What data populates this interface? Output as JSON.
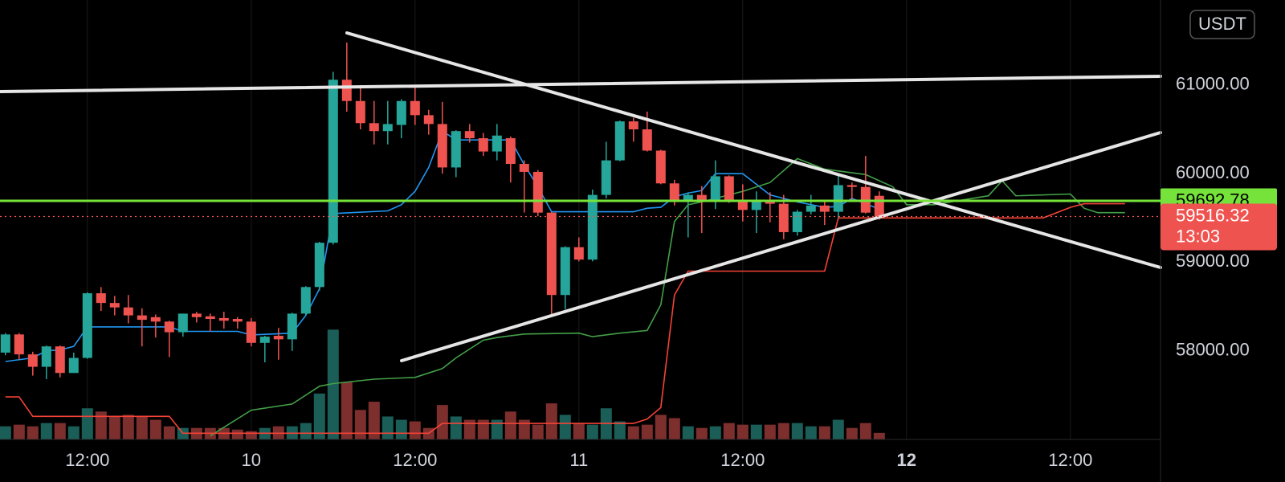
{
  "chart_data": {
    "type": "candlestick",
    "currency": "USDT",
    "up_color": "#26a69a",
    "down_color": "#ef5350",
    "volume_up_color": "#1b5e58",
    "volume_down_color": "#7d2f2e",
    "grid": true,
    "xlim": [
      -18.4,
      66.6
    ],
    "ylim": [
      57000,
      61960
    ],
    "xticks": [
      {
        "value": -12,
        "label": "12:00"
      },
      {
        "value": 0,
        "label": "10"
      },
      {
        "value": 12,
        "label": "12:00"
      },
      {
        "value": 24,
        "label": "11"
      },
      {
        "value": 36,
        "label": "12:00"
      },
      {
        "value": 48,
        "label": "12"
      },
      {
        "value": 60,
        "label": "12:00"
      }
    ],
    "yticks": [
      {
        "value": 58000,
        "label": "58000.00"
      },
      {
        "value": 59000,
        "label": "59000.00"
      },
      {
        "value": 60000,
        "label": "60000.00"
      },
      {
        "value": 61000,
        "label": "61000.00"
      }
    ],
    "candles": {
      "x": [
        -18,
        -17,
        -16,
        -15,
        -14,
        -13,
        -12,
        -11,
        -10,
        -9,
        -8,
        -7,
        -6,
        -5,
        -4,
        -3,
        -2,
        -1,
        0,
        1,
        2,
        3,
        4,
        5,
        6,
        7,
        8,
        9,
        10,
        11,
        12,
        13,
        14,
        15,
        16,
        17,
        18,
        19,
        20,
        21,
        22,
        23,
        24,
        25,
        26,
        27,
        28,
        29,
        30,
        31,
        32,
        33,
        34,
        35,
        36,
        37,
        38,
        39,
        40,
        41,
        42,
        43,
        44,
        45,
        46
      ],
      "open": [
        57980,
        58185,
        57960,
        57820,
        58050,
        57750,
        57920,
        58650,
        58540,
        58490,
        58400,
        58380,
        58330,
        58210,
        58420,
        58390,
        58370,
        58360,
        58330,
        58090,
        58170,
        58130,
        58420,
        58720,
        59220,
        61060,
        60820,
        60570,
        60480,
        60550,
        60820,
        60660,
        60560,
        60070,
        60480,
        60400,
        60250,
        60400,
        60110,
        60020,
        59560,
        58630,
        59170,
        59030,
        59760,
        60150,
        60590,
        60500,
        60260,
        59890,
        59700,
        59760,
        59690,
        59970,
        59690,
        59590,
        59700,
        59660,
        59340,
        59570,
        59640,
        59570,
        59870,
        59850,
        59750
      ],
      "high": [
        58200,
        58200,
        57990,
        58060,
        58060,
        57980,
        58660,
        58720,
        58620,
        58630,
        58480,
        58410,
        58340,
        58420,
        58440,
        58420,
        58440,
        58380,
        58370,
        58170,
        58260,
        58430,
        58730,
        59230,
        61150,
        61480,
        61000,
        60820,
        60820,
        60840,
        60990,
        60720,
        60810,
        60490,
        60560,
        60460,
        60560,
        60420,
        60150,
        60040,
        59570,
        59180,
        59280,
        59820,
        60360,
        60600,
        60630,
        60700,
        60270,
        59930,
        59790,
        59860,
        60150,
        59980,
        59880,
        59800,
        59790,
        59760,
        59590,
        59760,
        59700,
        59980,
        59900,
        60200,
        59800
      ],
      "low": [
        57950,
        57900,
        57720,
        57680,
        57700,
        57750,
        57910,
        58450,
        58400,
        58310,
        58050,
        58150,
        57930,
        58160,
        58320,
        58220,
        58250,
        58250,
        58050,
        57870,
        57900,
        58000,
        58400,
        58680,
        59200,
        60700,
        60500,
        60330,
        60330,
        60400,
        60550,
        60440,
        60000,
        59960,
        60350,
        60200,
        60150,
        59900,
        59560,
        59520,
        58400,
        58470,
        59010,
        59010,
        59720,
        60140,
        60360,
        60250,
        59880,
        59640,
        59280,
        59330,
        59600,
        59670,
        59460,
        59330,
        59450,
        59260,
        59300,
        59540,
        59420,
        59500,
        59700,
        59550,
        59480
      ],
      "close": [
        58185,
        57960,
        57820,
        58050,
        57750,
        57920,
        58650,
        58540,
        58490,
        58400,
        58350,
        58330,
        58210,
        58420,
        58380,
        58360,
        58340,
        58330,
        58090,
        58160,
        58130,
        58420,
        58720,
        59220,
        61060,
        60820,
        60570,
        60480,
        60560,
        60820,
        60660,
        60560,
        60070,
        60480,
        60400,
        60250,
        60430,
        60110,
        60020,
        59560,
        58630,
        59170,
        59030,
        59760,
        60150,
        60590,
        60500,
        60260,
        59890,
        59700,
        59760,
        59690,
        59970,
        59690,
        59590,
        59700,
        59660,
        59340,
        59570,
        59640,
        59570,
        59870,
        59850,
        59560,
        59516.32
      ]
    },
    "volume": [
      16,
      18,
      16,
      20,
      20,
      16,
      38,
      34,
      28,
      30,
      28,
      24,
      16,
      14,
      14,
      14,
      14,
      12,
      10,
      14,
      16,
      16,
      20,
      56,
      134,
      70,
      36,
      46,
      28,
      24,
      22,
      14,
      42,
      28,
      24,
      24,
      24,
      34,
      24,
      18,
      44,
      30,
      20,
      18,
      38,
      22,
      16,
      18,
      30,
      26,
      16,
      14,
      16,
      20,
      18,
      18,
      18,
      20,
      20,
      16,
      16,
      24,
      14,
      20,
      8
    ],
    "lines": [
      {
        "color": "#2196f3",
        "x": [
          -18,
          -16,
          -15,
          -14,
          -13,
          -12,
          -6,
          -5,
          -1,
          0,
          3,
          4,
          5,
          6,
          10,
          11,
          12,
          13,
          14,
          15,
          19,
          20,
          21,
          22,
          28,
          29,
          30,
          31,
          32,
          33,
          34,
          36,
          37,
          38,
          40,
          42,
          43,
          44,
          46
        ],
        "values": [
          57880,
          57920,
          58000,
          58010,
          58050,
          58270,
          58270,
          58220,
          58220,
          58180,
          58200,
          58400,
          58700,
          59550,
          59580,
          59650,
          59800,
          60070,
          60480,
          60380,
          60380,
          60100,
          59850,
          59570,
          59570,
          59610,
          59620,
          59740,
          59780,
          59810,
          60000,
          60000,
          59880,
          59760,
          59680,
          59620,
          59630,
          59720,
          59600
        ]
      },
      {
        "color": "#43a047",
        "x": [
          -3,
          0,
          3,
          5,
          6,
          9,
          12,
          14,
          15,
          17,
          18,
          20,
          24,
          25,
          27,
          29,
          30,
          31,
          32,
          33,
          36,
          38,
          40,
          42,
          45,
          47,
          48,
          50,
          52,
          54,
          55,
          56,
          60,
          61,
          62,
          64
        ],
        "values": [
          57040,
          57330,
          57400,
          57600,
          57630,
          57680,
          57700,
          57800,
          57920,
          58120,
          58150,
          58190,
          58200,
          58160,
          58200,
          58230,
          58520,
          59460,
          59650,
          59680,
          59800,
          59900,
          60170,
          60050,
          59990,
          59850,
          59650,
          59650,
          59700,
          59750,
          59920,
          59750,
          59770,
          59610,
          59560,
          59560
        ]
      },
      {
        "color": "#f44336",
        "x": [
          -18,
          -17,
          -16,
          -6,
          -5,
          4,
          13,
          14,
          28,
          29,
          30,
          31,
          32,
          42,
          43,
          58,
          60,
          61,
          64
        ],
        "values": [
          57480,
          57480,
          57260,
          57260,
          57070,
          57070,
          57070,
          57180,
          57180,
          57230,
          57360,
          58630,
          58900,
          58900,
          59500,
          59500,
          59620,
          59660,
          59660
        ]
      }
    ],
    "price_lines": [
      {
        "value": 59692.78,
        "color": "#76e33a",
        "text_color": "#000000",
        "style": "solid"
      },
      {
        "value": 59516.32,
        "color": "#ef5350",
        "text_color": "#ffffff",
        "style": "dotted",
        "countdown": "13:03"
      }
    ]
  }
}
